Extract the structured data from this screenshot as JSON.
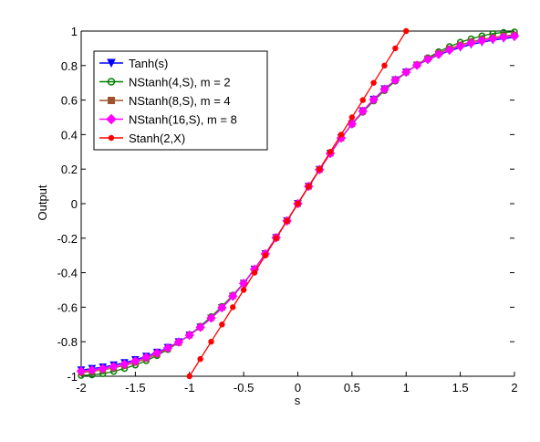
{
  "chart_data": {
    "type": "line",
    "title": "",
    "xlabel": "s",
    "ylabel": "Output",
    "xlim": [
      -2,
      2
    ],
    "ylim": [
      -1,
      1
    ],
    "xticks": [
      -2,
      -1.5,
      -1,
      -0.5,
      0,
      0.5,
      1,
      1.5,
      2
    ],
    "xtick_labels": [
      "-2",
      "-1.5",
      "-1",
      "-0.5",
      "0",
      "0.5",
      "1",
      "1.5",
      "2"
    ],
    "yticks": [
      -1,
      -0.8,
      -0.6,
      -0.4,
      -0.2,
      0,
      0.2,
      0.4,
      0.6,
      0.8,
      1
    ],
    "ytick_labels": [
      "-1",
      "-0.8",
      "-0.6",
      "-0.4",
      "-0.2",
      "0",
      "0.2",
      "0.4",
      "0.6",
      "0.8",
      "1"
    ],
    "grid": false,
    "legend_position": "top-left",
    "series": [
      {
        "name": "Tanh(s)",
        "color": "#0000ff",
        "marker": "triangle-down",
        "x": [
          -2,
          -1.9,
          -1.8,
          -1.7,
          -1.6,
          -1.5,
          -1.4,
          -1.3,
          -1.2,
          -1.1,
          -1,
          -0.9,
          -0.8,
          -0.7,
          -0.6,
          -0.5,
          -0.4,
          -0.3,
          -0.2,
          -0.1,
          0,
          0.1,
          0.2,
          0.3,
          0.4,
          0.5,
          0.6,
          0.7,
          0.8,
          0.9,
          1,
          1.1,
          1.2,
          1.3,
          1.4,
          1.5,
          1.6,
          1.7,
          1.8,
          1.9,
          2
        ],
        "y": [
          -0.964,
          -0.956,
          -0.947,
          -0.935,
          -0.922,
          -0.905,
          -0.885,
          -0.862,
          -0.834,
          -0.801,
          -0.762,
          -0.716,
          -0.664,
          -0.604,
          -0.537,
          -0.462,
          -0.38,
          -0.291,
          -0.197,
          -0.1,
          0,
          0.1,
          0.197,
          0.291,
          0.38,
          0.462,
          0.537,
          0.604,
          0.664,
          0.716,
          0.762,
          0.801,
          0.834,
          0.862,
          0.885,
          0.905,
          0.922,
          0.935,
          0.947,
          0.956,
          0.964
        ]
      },
      {
        "name": "NStanh(4,S), m = 2",
        "color": "#008000",
        "marker": "circle-open",
        "x": [
          -2,
          -1.9,
          -1.8,
          -1.7,
          -1.6,
          -1.5,
          -1.4,
          -1.3,
          -1.2,
          -1.1,
          -1,
          -0.9,
          -0.8,
          -0.7,
          -0.6,
          -0.5,
          -0.4,
          -0.3,
          -0.2,
          -0.1,
          0,
          0.1,
          0.2,
          0.3,
          0.4,
          0.5,
          0.6,
          0.7,
          0.8,
          0.9,
          1,
          1.1,
          1.2,
          1.3,
          1.4,
          1.5,
          1.6,
          1.7,
          1.8,
          1.9,
          2
        ],
        "y": [
          -0.995,
          -0.992,
          -0.985,
          -0.972,
          -0.955,
          -0.935,
          -0.91,
          -0.88,
          -0.845,
          -0.805,
          -0.76,
          -0.71,
          -0.655,
          -0.595,
          -0.53,
          -0.46,
          -0.38,
          -0.29,
          -0.195,
          -0.1,
          0,
          0.1,
          0.195,
          0.29,
          0.38,
          0.46,
          0.53,
          0.595,
          0.655,
          0.71,
          0.76,
          0.805,
          0.845,
          0.88,
          0.91,
          0.935,
          0.955,
          0.972,
          0.985,
          0.992,
          0.995
        ]
      },
      {
        "name": "NStanh(8,S), m = 4",
        "color": "#a0522d",
        "marker": "square",
        "x": [
          -2,
          -1.9,
          -1.8,
          -1.7,
          -1.6,
          -1.5,
          -1.4,
          -1.3,
          -1.2,
          -1.1,
          -1,
          -0.9,
          -0.8,
          -0.7,
          -0.6,
          -0.5,
          -0.4,
          -0.3,
          -0.2,
          -0.1,
          0,
          0.1,
          0.2,
          0.3,
          0.4,
          0.5,
          0.6,
          0.7,
          0.8,
          0.9,
          1,
          1.1,
          1.2,
          1.3,
          1.4,
          1.5,
          1.6,
          1.7,
          1.8,
          1.9,
          2
        ],
        "y": [
          -0.978,
          -0.972,
          -0.963,
          -0.952,
          -0.938,
          -0.92,
          -0.898,
          -0.872,
          -0.84,
          -0.805,
          -0.762,
          -0.716,
          -0.662,
          -0.601,
          -0.535,
          -0.462,
          -0.38,
          -0.291,
          -0.197,
          -0.1,
          0,
          0.1,
          0.197,
          0.291,
          0.38,
          0.462,
          0.535,
          0.601,
          0.662,
          0.716,
          0.762,
          0.805,
          0.84,
          0.872,
          0.898,
          0.92,
          0.938,
          0.952,
          0.963,
          0.972,
          0.978
        ]
      },
      {
        "name": "NStanh(16,S), m = 8",
        "color": "#ff00ff",
        "marker": "diamond",
        "x": [
          -2,
          -1.9,
          -1.8,
          -1.7,
          -1.6,
          -1.5,
          -1.4,
          -1.3,
          -1.2,
          -1.1,
          -1,
          -0.9,
          -0.8,
          -0.7,
          -0.6,
          -0.5,
          -0.4,
          -0.3,
          -0.2,
          -0.1,
          0,
          0.1,
          0.2,
          0.3,
          0.4,
          0.5,
          0.6,
          0.7,
          0.8,
          0.9,
          1,
          1.1,
          1.2,
          1.3,
          1.4,
          1.5,
          1.6,
          1.7,
          1.8,
          1.9,
          2
        ],
        "y": [
          -0.97,
          -0.964,
          -0.955,
          -0.944,
          -0.93,
          -0.912,
          -0.89,
          -0.865,
          -0.836,
          -0.802,
          -0.762,
          -0.716,
          -0.663,
          -0.603,
          -0.536,
          -0.462,
          -0.38,
          -0.291,
          -0.197,
          -0.1,
          0,
          0.1,
          0.197,
          0.291,
          0.38,
          0.462,
          0.536,
          0.603,
          0.663,
          0.716,
          0.762,
          0.802,
          0.836,
          0.865,
          0.89,
          0.912,
          0.93,
          0.944,
          0.955,
          0.964,
          0.97
        ]
      },
      {
        "name": "Stanh(2,X)",
        "color": "#ff0000",
        "marker": "dot",
        "x": [
          -1,
          -0.9,
          -0.8,
          -0.7,
          -0.6,
          -0.5,
          -0.4,
          -0.3,
          -0.2,
          -0.1,
          0,
          0.1,
          0.2,
          0.3,
          0.4,
          0.5,
          0.6,
          0.7,
          0.8,
          0.9,
          1
        ],
        "y": [
          -1,
          -0.9,
          -0.8,
          -0.7,
          -0.6,
          -0.5,
          -0.4,
          -0.3,
          -0.2,
          -0.1,
          0,
          0.1,
          0.2,
          0.3,
          0.4,
          0.5,
          0.6,
          0.7,
          0.8,
          0.9,
          1
        ]
      }
    ]
  }
}
